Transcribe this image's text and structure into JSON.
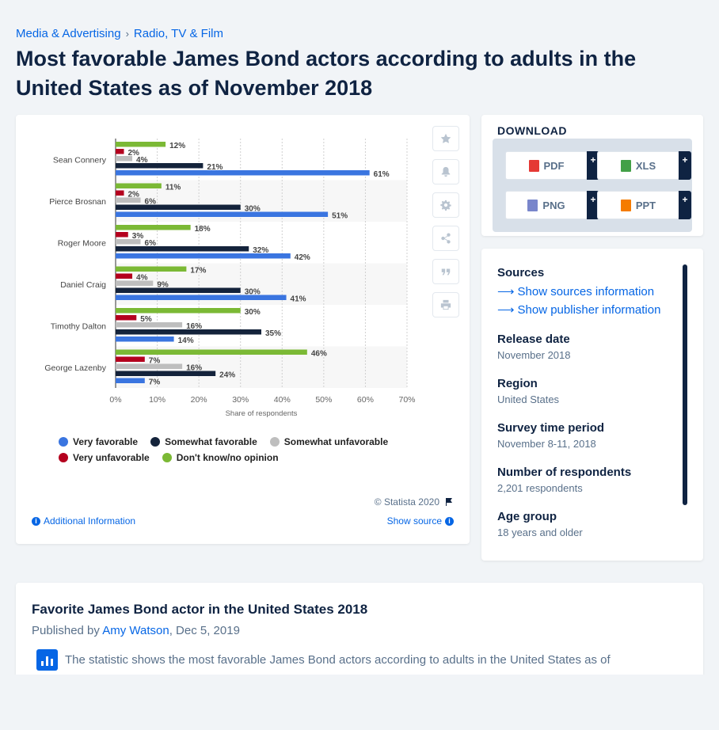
{
  "breadcrumb": {
    "items": [
      "Media & Advertising",
      "Radio, TV & Film"
    ],
    "separator": "›"
  },
  "page_title": "Most favorable James Bond actors according to adults in the United States as of November 2018",
  "chart_data": {
    "type": "bar",
    "orientation": "horizontal",
    "categories": [
      "Sean Connery",
      "Pierce Brosnan",
      "Roger Moore",
      "Daniel Craig",
      "Timothy Dalton",
      "George Lazenby"
    ],
    "series": [
      {
        "name": "Don't know/no opinion",
        "color": "#7bb935",
        "values": [
          12,
          11,
          18,
          17,
          30,
          46
        ]
      },
      {
        "name": "Very unfavorable",
        "color": "#b4001e",
        "values": [
          2,
          2,
          3,
          4,
          5,
          7
        ]
      },
      {
        "name": "Somewhat unfavorable",
        "color": "#bebebe",
        "values": [
          4,
          6,
          6,
          9,
          16,
          16
        ]
      },
      {
        "name": "Somewhat favorable",
        "color": "#14233b",
        "values": [
          21,
          30,
          32,
          30,
          35,
          24
        ]
      },
      {
        "name": "Very favorable",
        "color": "#3a75e0",
        "values": [
          61,
          51,
          42,
          41,
          14,
          7
        ]
      }
    ],
    "xlabel": "Share of respondents",
    "xlim": [
      0,
      70
    ],
    "xticks": [
      0,
      10,
      20,
      30,
      40,
      50,
      60,
      70
    ],
    "value_suffix": "%",
    "legend_order": [
      "Very favorable",
      "Somewhat favorable",
      "Somewhat unfavorable",
      "Very unfavorable",
      "Don't know/no opinion"
    ],
    "legend_position": "bottom",
    "grid": true
  },
  "chart_card": {
    "copyright": "© Statista 2020",
    "additional_info": "Additional Information",
    "show_source": "Show source"
  },
  "download": {
    "title": "DOWNLOAD",
    "buttons": [
      {
        "label": "PDF",
        "color": "#e53935"
      },
      {
        "label": "XLS",
        "color": "#43a047"
      },
      {
        "label": "PNG",
        "color": "#7986cb"
      },
      {
        "label": "PPT",
        "color": "#f57c00"
      }
    ],
    "plus": "+"
  },
  "sources": {
    "heading": "Sources",
    "show_sources": "Show sources information",
    "show_publisher": "Show publisher information",
    "fields": [
      {
        "label": "Release date",
        "value": "November 2018"
      },
      {
        "label": "Region",
        "value": "United States"
      },
      {
        "label": "Survey time period",
        "value": "November 8-11, 2018"
      },
      {
        "label": "Number of respondents",
        "value": "2,201 respondents"
      },
      {
        "label": "Age group",
        "value": "18 years and older"
      }
    ]
  },
  "description": {
    "title": "Favorite James Bond actor in the United States 2018",
    "published_by_prefix": "Published by ",
    "author": "Amy Watson",
    "date_suffix": ", Dec 5, 2019",
    "text": "The statistic shows the most favorable James Bond actors according to adults in the United States as of"
  }
}
